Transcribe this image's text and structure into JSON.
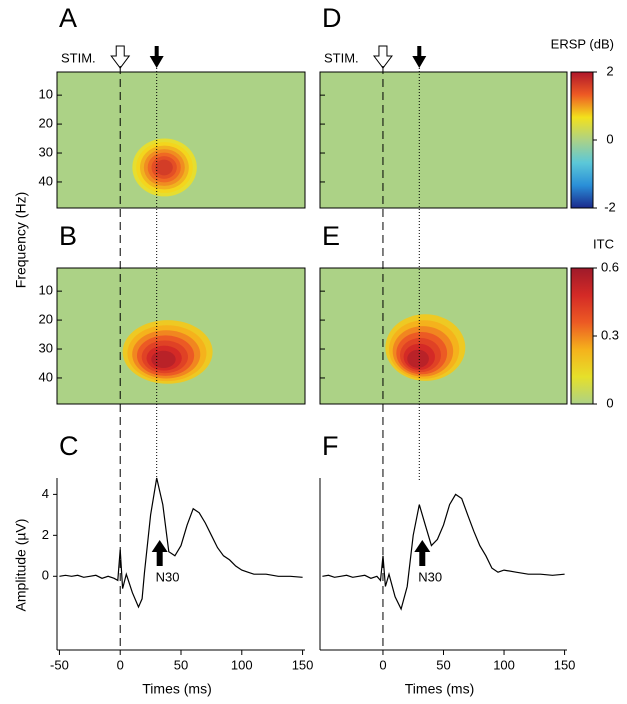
{
  "frequency_label": "Frequency (Hz)",
  "amplitude_label": "Amplitude (µV)",
  "markers": {
    "stim_ms": 0,
    "n30_ms": 30
  },
  "colorbars": [
    {
      "title": "ERSP (dB)",
      "lim": [
        -2,
        2
      ],
      "ticks": [
        2,
        0,
        -2
      ],
      "colors": [
        "#1b2a8c",
        "#2a8fd8",
        "#5cc8d8",
        "#acd286",
        "#f3e11c",
        "#ee5a24",
        "#b0172b"
      ]
    },
    {
      "title": "ITC",
      "lim": [
        0,
        0.6
      ],
      "ticks": [
        0.6,
        0.3,
        0
      ],
      "colors": [
        "#acd286",
        "#e6e02a",
        "#f5b21c",
        "#ec5a24",
        "#d42a26",
        "#9e1a2a"
      ]
    }
  ],
  "chart_data": [
    {
      "type": "heatmap",
      "label": "A",
      "stim_label": "STIM.",
      "colorbar": 0,
      "xlim": [
        -52,
        152
      ],
      "ylim": [
        2,
        49
      ],
      "yticks": [
        10,
        20,
        30,
        40
      ],
      "tick_labels": true,
      "background": "#acd286",
      "blob": {
        "x": [
          10,
          63
        ],
        "y": [
          25,
          45
        ],
        "peak": 1.8,
        "peak_at": [
          36,
          35
        ]
      }
    },
    {
      "type": "heatmap",
      "label": "D",
      "stim_label": "STIM.",
      "colorbar": 0,
      "xlim": [
        -52,
        152
      ],
      "ylim": [
        2,
        49
      ],
      "yticks": [
        10,
        20,
        30,
        40
      ],
      "tick_labels": false,
      "background": "#acd286"
    },
    {
      "type": "heatmap",
      "label": "B",
      "colorbar": 1,
      "xlim": [
        -52,
        152
      ],
      "ylim": [
        2,
        49
      ],
      "yticks": [
        10,
        20,
        30,
        40
      ],
      "tick_labels": true,
      "background": "#acd286",
      "blob": {
        "x": [
          2,
          76
        ],
        "y": [
          20,
          42
        ],
        "peak": 0.6,
        "peak_at": [
          35,
          34
        ]
      }
    },
    {
      "type": "heatmap",
      "label": "E",
      "colorbar": 1,
      "xlim": [
        -52,
        152
      ],
      "ylim": [
        2,
        49
      ],
      "yticks": [
        10,
        20,
        30,
        40
      ],
      "tick_labels": false,
      "background": "#acd286",
      "blob": {
        "x": [
          2,
          68
        ],
        "y": [
          18,
          41
        ],
        "peak": 0.6,
        "peak_at": [
          28,
          34
        ]
      }
    },
    {
      "type": "line",
      "label": "C",
      "peak_label": "N30",
      "x_label": "Times (ms)",
      "xlim": [
        -52,
        152
      ],
      "ylim": [
        -3.6,
        4.8
      ],
      "xticks": [
        -50,
        0,
        50,
        100,
        150
      ],
      "yticks": [
        0,
        2,
        4
      ],
      "color": "#000000",
      "x": [
        -50,
        -45,
        -40,
        -35,
        -30,
        -25,
        -20,
        -15,
        -10,
        -5,
        -2,
        0,
        2,
        5,
        10,
        15,
        18,
        20,
        25,
        30,
        35,
        40,
        45,
        50,
        55,
        60,
        65,
        70,
        75,
        80,
        85,
        90,
        95,
        100,
        105,
        110,
        120,
        130,
        140,
        150
      ],
      "values": [
        0,
        0.05,
        0,
        0.05,
        -0.05,
        0,
        0.05,
        -0.1,
        0,
        -0.1,
        -0.2,
        1.3,
        -0.6,
        0.1,
        -0.8,
        -1.5,
        -1.1,
        0.2,
        3.0,
        4.8,
        3.5,
        1.2,
        1.0,
        1.5,
        2.5,
        3.3,
        3.1,
        2.6,
        2.0,
        1.4,
        1.0,
        0.8,
        0.5,
        0.3,
        0.2,
        0.1,
        0.1,
        0,
        0,
        -0.05
      ]
    },
    {
      "type": "line",
      "label": "F",
      "peak_label": "N30",
      "x_label": "Times (ms)",
      "xlim": [
        -52,
        152
      ],
      "ylim": [
        -3.6,
        4.8
      ],
      "xticks": [
        0,
        50,
        100,
        150
      ],
      "yticks": [],
      "color": "#000000",
      "x": [
        -50,
        -45,
        -40,
        -35,
        -30,
        -25,
        -20,
        -15,
        -10,
        -5,
        -2,
        0,
        2,
        5,
        10,
        15,
        20,
        25,
        30,
        35,
        40,
        45,
        50,
        55,
        60,
        65,
        70,
        75,
        80,
        85,
        90,
        95,
        100,
        110,
        120,
        130,
        140,
        150
      ],
      "values": [
        0,
        0.05,
        -0.05,
        0,
        0.05,
        -0.05,
        0,
        0.05,
        -0.1,
        0,
        -0.2,
        1.0,
        -0.5,
        0.1,
        -1.0,
        -1.6,
        -0.5,
        2.0,
        3.5,
        2.5,
        1.5,
        1.8,
        2.5,
        3.5,
        4.0,
        3.8,
        3.0,
        2.2,
        1.5,
        1.0,
        0.4,
        0.2,
        0.3,
        0.2,
        0.1,
        0.1,
        0.05,
        0.1
      ]
    }
  ]
}
